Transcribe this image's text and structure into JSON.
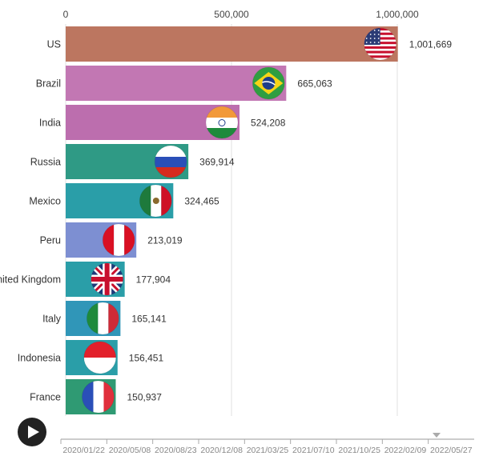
{
  "chart_data": {
    "type": "bar",
    "orientation": "horizontal",
    "categories": [
      "US",
      "Brazil",
      "India",
      "Russia",
      "Mexico",
      "Peru",
      "United Kingdom",
      "Italy",
      "Indonesia",
      "France"
    ],
    "values": [
      1001669,
      665063,
      524208,
      369914,
      324465,
      213019,
      177904,
      165141,
      156451,
      150937
    ],
    "value_labels": [
      "1,001,669",
      "665,063",
      "524,208",
      "369,914",
      "324,465",
      "213,019",
      "177,904",
      "165,141",
      "156,451",
      "150,937"
    ],
    "xlim": [
      0,
      1000000
    ],
    "x_ticks": [
      0,
      500000,
      1000000
    ],
    "x_tick_labels": [
      "0",
      "500,000",
      "1,000,000"
    ],
    "x_axis_position": "top",
    "grid": true,
    "title": "",
    "xlabel": "",
    "ylabel": "",
    "colors": [
      "#bc7660",
      "#c277b3",
      "#bc6eae",
      "#2f9a85",
      "#2a9ea8",
      "#7d8fd2",
      "#2a9ea8",
      "#3096b8",
      "#2a9ea8",
      "#2f9a73"
    ],
    "flags": [
      "us-flag-icon",
      "brazil-flag-icon",
      "india-flag-icon",
      "russia-flag-icon",
      "mexico-flag-icon",
      "peru-flag-icon",
      "uk-flag-icon",
      "italy-flag-icon",
      "indonesia-flag-icon",
      "france-flag-icon"
    ]
  },
  "timeline": {
    "play_icon": "play-icon",
    "labels": [
      "2020/01/22",
      "2020/05/08",
      "2020/08/23",
      "2020/12/08",
      "2021/03/25",
      "2021/07/10",
      "2021/10/25",
      "2022/02/09",
      "2022/05/27"
    ],
    "current_date": "2022/05/27"
  }
}
